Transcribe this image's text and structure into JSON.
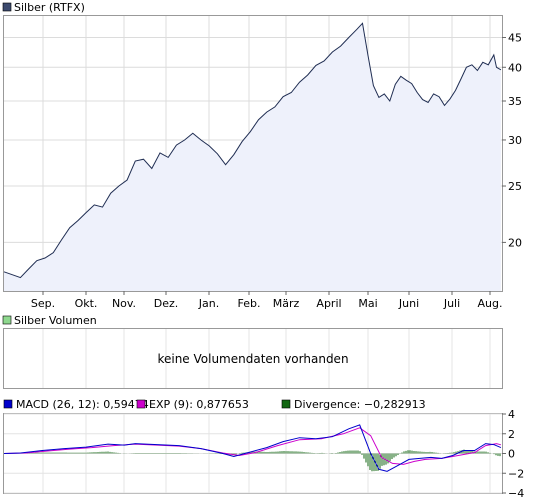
{
  "chart_data": [
    {
      "type": "area",
      "legend": "Silber (RTFX)",
      "legend_color": "#3c4a6e",
      "line_color": "#1f2d52",
      "fill_color": "#eef1fb",
      "y_scale": "log",
      "ylim": [
        16.5,
        49
      ],
      "y_ticks": [
        20,
        25,
        30,
        35,
        40,
        45
      ],
      "x_ticks": [
        "Sep.",
        "Okt.",
        "Nov.",
        "Dez.",
        "Jan.",
        "Feb.",
        "März",
        "April",
        "Mai",
        "Juni",
        "Juli",
        "Aug."
      ],
      "grid": true,
      "series": [
        {
          "points": [
            [
              0,
              17.8
            ],
            [
              1.5,
              17.6
            ],
            [
              3,
              17.4
            ],
            [
              4.5,
              18.0
            ],
            [
              6,
              18.6
            ],
            [
              7.5,
              18.8
            ],
            [
              9,
              19.2
            ],
            [
              10.5,
              20.2
            ],
            [
              12,
              21.2
            ],
            [
              13.5,
              21.8
            ],
            [
              15,
              22.5
            ],
            [
              16.5,
              23.2
            ],
            [
              18,
              23.0
            ],
            [
              19.5,
              24.3
            ],
            [
              21,
              25.0
            ],
            [
              22.5,
              25.6
            ],
            [
              24,
              27.6
            ],
            [
              25.5,
              27.8
            ],
            [
              27,
              26.8
            ],
            [
              28.5,
              28.5
            ],
            [
              30,
              28.0
            ],
            [
              31.5,
              29.4
            ],
            [
              33,
              30.0
            ],
            [
              34.5,
              30.8
            ],
            [
              36,
              30.0
            ],
            [
              37.5,
              29.3
            ],
            [
              39,
              28.4
            ],
            [
              40.5,
              27.2
            ],
            [
              42,
              28.3
            ],
            [
              43.5,
              29.8
            ],
            [
              45,
              31.0
            ],
            [
              46.5,
              32.5
            ],
            [
              48,
              33.5
            ],
            [
              49.5,
              34.2
            ],
            [
              51,
              35.6
            ],
            [
              52.5,
              36.2
            ],
            [
              54,
              37.7
            ],
            [
              55.5,
              38.8
            ],
            [
              57,
              40.3
            ],
            [
              58.5,
              41.0
            ],
            [
              60,
              42.5
            ],
            [
              61.5,
              43.5
            ],
            [
              63,
              45.0
            ],
            [
              64.5,
              46.5
            ],
            [
              65.5,
              47.6
            ],
            [
              66.5,
              42.0
            ],
            [
              67.5,
              37.2
            ],
            [
              68.5,
              35.5
            ],
            [
              69.5,
              36.0
            ],
            [
              70.5,
              35.0
            ],
            [
              71.5,
              37.4
            ],
            [
              72.5,
              38.6
            ],
            [
              73.5,
              38.0
            ],
            [
              74.5,
              37.5
            ],
            [
              75.5,
              36.2
            ],
            [
              76.5,
              35.2
            ],
            [
              77.5,
              34.8
            ],
            [
              78.5,
              36.0
            ],
            [
              79.5,
              35.6
            ],
            [
              80.5,
              34.4
            ],
            [
              81.5,
              35.3
            ],
            [
              82.5,
              36.5
            ],
            [
              83.5,
              38.2
            ],
            [
              84.5,
              40.0
            ],
            [
              85.5,
              40.4
            ],
            [
              86.5,
              39.5
            ],
            [
              87.5,
              40.8
            ],
            [
              88.5,
              40.4
            ],
            [
              89.5,
              42.0
            ],
            [
              90,
              40.0
            ],
            [
              90.8,
              39.6
            ]
          ]
        }
      ]
    },
    {
      "type": "bar",
      "legend": "Silber Volumen",
      "legend_color": "#8ed88e",
      "message": "keine Volumendaten vorhanden",
      "grid": true
    },
    {
      "type": "line",
      "ylim": [
        -4,
        4
      ],
      "y_ticks": [
        -4,
        -2,
        0,
        2,
        4
      ],
      "grid": true,
      "legend_items": [
        {
          "label": "MACD (26, 12): 0,59474",
          "color": "#0000cc"
        },
        {
          "label": "EXP (9): 0,877653",
          "color": "#cc00cc"
        },
        {
          "label": "Divergence: −0,282913",
          "color": "#116611"
        }
      ],
      "series": [
        {
          "points": [
            [
              0,
              0.0
            ],
            [
              3,
              0.05
            ],
            [
              7,
              0.3
            ],
            [
              11,
              0.5
            ],
            [
              15,
              0.65
            ],
            [
              19,
              0.95
            ],
            [
              22,
              0.85
            ],
            [
              24,
              1.0
            ],
            [
              28,
              0.9
            ],
            [
              32,
              0.8
            ],
            [
              36,
              0.5
            ],
            [
              40,
              0.0
            ],
            [
              42,
              -0.3
            ],
            [
              44,
              0.0
            ],
            [
              48,
              0.6
            ],
            [
              51,
              1.2
            ],
            [
              54,
              1.6
            ],
            [
              57,
              1.5
            ],
            [
              60,
              1.7
            ],
            [
              63,
              2.5
            ],
            [
              65,
              2.9
            ],
            [
              67,
              0.0
            ],
            [
              68.5,
              -1.6
            ],
            [
              70,
              -1.8
            ],
            [
              72,
              -1.2
            ],
            [
              74,
              -0.6
            ],
            [
              76,
              -0.5
            ],
            [
              78,
              -0.4
            ],
            [
              80,
              -0.5
            ],
            [
              82,
              -0.2
            ],
            [
              84,
              0.3
            ],
            [
              86,
              0.3
            ],
            [
              88,
              1.0
            ],
            [
              89.5,
              0.9
            ],
            [
              90.8,
              0.6
            ]
          ]
        },
        {
          "points": [
            [
              0,
              0.0
            ],
            [
              4,
              0.05
            ],
            [
              8,
              0.25
            ],
            [
              12,
              0.45
            ],
            [
              16,
              0.6
            ],
            [
              20,
              0.8
            ],
            [
              24,
              0.95
            ],
            [
              28,
              0.85
            ],
            [
              32,
              0.75
            ],
            [
              36,
              0.5
            ],
            [
              40,
              0.05
            ],
            [
              43,
              -0.2
            ],
            [
              46,
              0.1
            ],
            [
              50,
              0.8
            ],
            [
              54,
              1.4
            ],
            [
              58,
              1.5
            ],
            [
              62,
              2.0
            ],
            [
              65,
              2.6
            ],
            [
              67,
              1.8
            ],
            [
              69,
              -0.4
            ],
            [
              71,
              -1.0
            ],
            [
              73,
              -1.1
            ],
            [
              75,
              -0.8
            ],
            [
              77,
              -0.6
            ],
            [
              80,
              -0.5
            ],
            [
              83,
              -0.2
            ],
            [
              86,
              0.1
            ],
            [
              88,
              0.8
            ],
            [
              90,
              1.0
            ],
            [
              90.8,
              0.88
            ]
          ]
        }
      ]
    }
  ]
}
